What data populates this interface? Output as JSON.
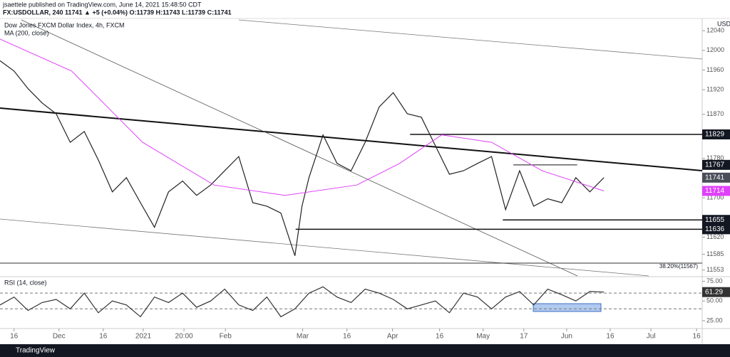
{
  "header": {
    "publisher": "jsaettele published on TradingView.com, June 14, 2021 15:48:50 CDT",
    "symbol_line": "FX:USDOLLAR, 240  11741  ▲ +5 (+0.04%)  O:11739  H:11743  L:11739  C:11741"
  },
  "chart_data": [
    {
      "type": "line",
      "title": "Dow Jones FXCM Dollar Index, 4h, FXCM",
      "y_axis_label": "USD",
      "xlim": [
        0,
        100
      ],
      "xticks": [
        {
          "value": 2,
          "label": "16"
        },
        {
          "value": 8.4,
          "label": "Dec"
        },
        {
          "value": 14.7,
          "label": "16"
        },
        {
          "value": 20.4,
          "label": "2021"
        },
        {
          "value": 26.2,
          "label": "20:00"
        },
        {
          "value": 32.1,
          "label": "Feb"
        },
        {
          "value": 43.1,
          "label": "Mar"
        },
        {
          "value": 49.4,
          "label": "16"
        },
        {
          "value": 55.9,
          "label": "Apr"
        },
        {
          "value": 62.6,
          "label": "16"
        },
        {
          "value": 68.8,
          "label": "May"
        },
        {
          "value": 74.6,
          "label": "17"
        },
        {
          "value": 80.7,
          "label": "Jun"
        },
        {
          "value": 86.9,
          "label": "16"
        },
        {
          "value": 92.7,
          "label": "Jul"
        },
        {
          "value": 99.2,
          "label": "16"
        }
      ],
      "ylim": [
        11541,
        12062
      ],
      "yticks": [
        12040,
        12000,
        11960,
        11920,
        11870,
        11780,
        11700,
        11620,
        11585,
        11553
      ],
      "series": [
        {
          "color": "#222222",
          "x": [
            0,
            2,
            4,
            6,
            8,
            10,
            12,
            14,
            16,
            18,
            20,
            22,
            24,
            26,
            28,
            30,
            32,
            34,
            36,
            38,
            40,
            42,
            43,
            44,
            46,
            48,
            50,
            52,
            54,
            56,
            58,
            60,
            62,
            64,
            66,
            68,
            70,
            72,
            74,
            76,
            78,
            80,
            82,
            84,
            86
          ],
          "values": [
            11979,
            11958,
            11922,
            11893,
            11871,
            11813,
            11835,
            11777,
            11712,
            11741,
            11690,
            11640,
            11712,
            11734,
            11705,
            11726,
            11755,
            11784,
            11690,
            11683,
            11669,
            11582,
            11683,
            11741,
            11828,
            11770,
            11755,
            11813,
            11885,
            11914,
            11871,
            11864,
            11806,
            11748,
            11755,
            11770,
            11784,
            11676,
            11755,
            11683,
            11698,
            11690,
            11741,
            11712,
            11741
          ]
        },
        {
          "name": "MA (200, close)",
          "color": "#e040fb",
          "x": [
            0,
            10.2,
            20.3,
            30.5,
            40.6,
            50.8,
            56.9,
            62.9,
            70,
            77.2,
            86
          ],
          "values": [
            12023,
            11958,
            11813,
            11726,
            11705,
            11726,
            11770,
            11828,
            11813,
            11755,
            11714
          ]
        }
      ],
      "levels": [
        {
          "value": 11829,
          "x": [
            58.4,
            100
          ]
        },
        {
          "value": 11767,
          "x": [
            73.1,
            82.2
          ]
        },
        {
          "value": 11655,
          "x": [
            71.6,
            100
          ]
        },
        {
          "value": 11636,
          "x": [
            42.1,
            100
          ]
        }
      ],
      "annotation": {
        "label": "38.20%(11567)",
        "value": 11567
      }
    },
    {
      "type": "line",
      "title": "RSI (14, close)",
      "xlim": [
        0,
        100
      ],
      "ylim": [
        15,
        80
      ],
      "yticks": [
        {
          "value": 75,
          "label": "75.00"
        },
        {
          "value": 50,
          "label": "50.00"
        },
        {
          "value": 25,
          "label": "25.00"
        }
      ],
      "bands": [
        40,
        60
      ],
      "series": [
        {
          "color": "#333333",
          "x": [
            0,
            2,
            4,
            6,
            8,
            10,
            12,
            14,
            16,
            18,
            20,
            22,
            24,
            26,
            28,
            30,
            32,
            34,
            36,
            38,
            40,
            42,
            44,
            46,
            48,
            50,
            52,
            54,
            56,
            58,
            60,
            62,
            64,
            66,
            68,
            70,
            72,
            74,
            76,
            78,
            80,
            82,
            84,
            86
          ],
          "values": [
            45,
            55,
            38,
            48,
            52,
            40,
            60,
            35,
            50,
            45,
            30,
            55,
            48,
            60,
            42,
            50,
            65,
            45,
            38,
            55,
            30,
            40,
            60,
            68,
            55,
            48,
            65,
            60,
            52,
            40,
            45,
            50,
            35,
            60,
            55,
            40,
            55,
            62,
            45,
            65,
            58,
            50,
            62,
            61.29
          ]
        }
      ]
    }
  ],
  "footer": "TradingView"
}
